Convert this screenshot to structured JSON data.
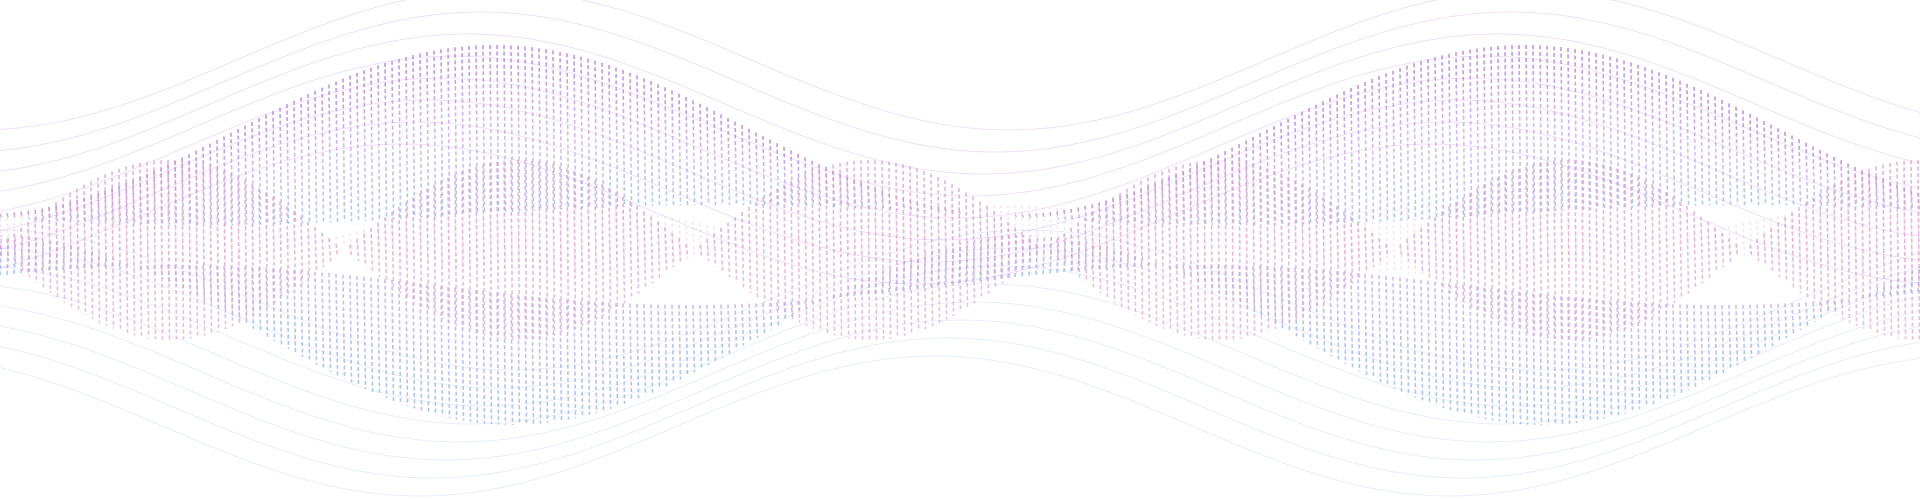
{
  "artwork": {
    "kind": "decorative-wave-ribbons",
    "background": "#ffffff",
    "colors": {
      "purple": "#b06ee0",
      "pink": "#e49ad2",
      "blue": "#8fb4f4",
      "light_pink": "#f1c6da"
    },
    "ribbons": [
      {
        "name": "upper-purple-ribbon",
        "color": "#b46ae4",
        "opacity": 0.75
      },
      {
        "name": "lower-blue-ribbon",
        "color": "#93b2f6",
        "opacity": 0.75
      },
      {
        "name": "center-pink-ribbon",
        "color": "#e59ad6",
        "opacity": 0.7
      },
      {
        "name": "faint-pink-band",
        "color": "#f1c6da",
        "opacity": 0.45
      }
    ]
  }
}
